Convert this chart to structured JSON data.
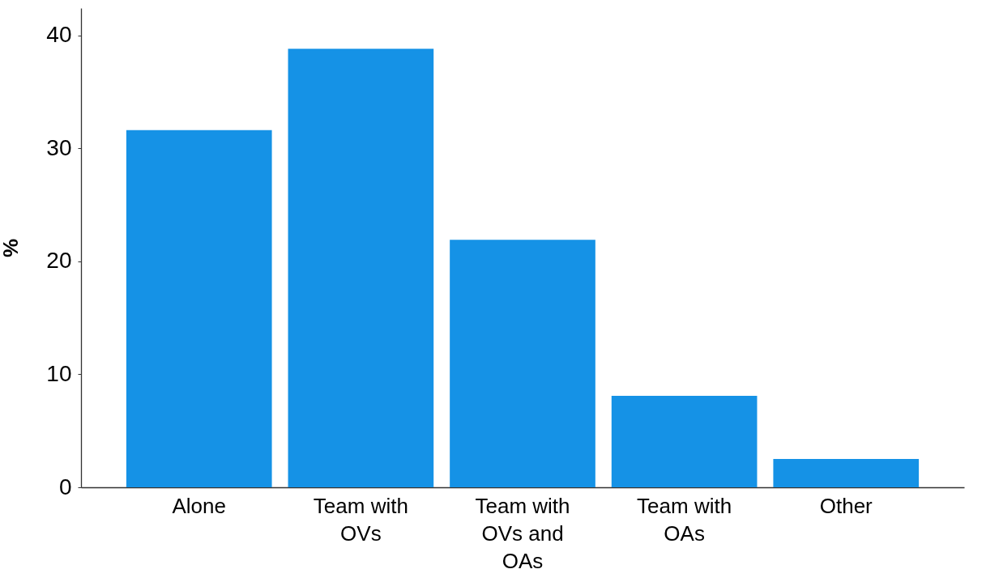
{
  "chart_data": {
    "type": "bar",
    "ylabel": "%",
    "categories": [
      "Alone",
      "Team with OVs",
      "Team with OVs and OAs",
      "Team with OAs",
      "Other"
    ],
    "values": [
      31.6,
      38.8,
      21.9,
      8.1,
      2.5
    ],
    "color": "#1592e6",
    "ylim": [
      0,
      42.4
    ],
    "yticks": [
      0,
      10,
      20,
      30,
      40
    ],
    "grid": false
  }
}
